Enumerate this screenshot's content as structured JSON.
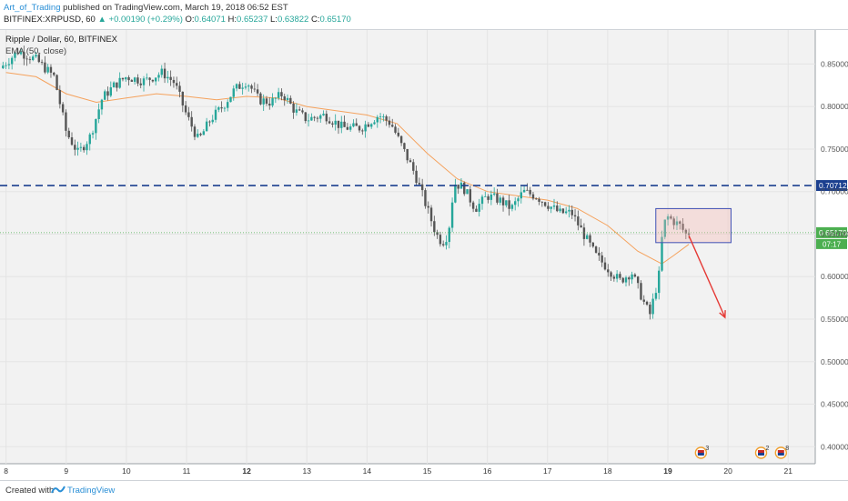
{
  "header": {
    "author": "Art_of_Trading",
    "published": "published on TradingView.com, March 19, 2018 06:52 EST",
    "symbol": "BITFINEX:XRPUSD, 60",
    "change": "+0.00190 (+0.29%)",
    "open_label": "O:",
    "open": "0.64071",
    "high_label": "H:",
    "high": "0.65237",
    "low_label": "L:",
    "low": "0.63822",
    "close_label": "C:",
    "close": "0.65170"
  },
  "chart_data": {
    "type": "candlestick",
    "title": "Ripple / Dollar, 60, BITFINEX",
    "indicator": "EMA (50, close)",
    "ylim": [
      0.38,
      0.89
    ],
    "y_ticks": [
      "0.85000",
      "0.80000",
      "0.75000",
      "0.70000",
      "0.65000",
      "0.60000",
      "0.55000",
      "0.50000",
      "0.45000",
      "0.40000"
    ],
    "x_ticks": [
      "8",
      "9",
      "10",
      "11",
      "12",
      "13",
      "14",
      "15",
      "16",
      "17",
      "18",
      "19",
      "20",
      "21"
    ],
    "x_range_days": [
      7.9,
      21.45
    ],
    "resistance_level": 0.70712,
    "resistance_label": "0.70712",
    "current_price": 0.6517,
    "current_label": "0.65170",
    "countdown_label": "07:17",
    "box": {
      "x0": 18.8,
      "x1": 20.05,
      "y0": 0.64,
      "y1": 0.68
    },
    "arrow": {
      "x0": 19.35,
      "y0": 0.648,
      "x1": 19.95,
      "y1": 0.552
    },
    "event_badges": [
      {
        "day": 19.55,
        "count": "3"
      },
      {
        "day": 20.55,
        "count": "2"
      },
      {
        "day": 20.88,
        "count": "8"
      },
      {
        "day": 21.45,
        "count": ""
      }
    ],
    "colors": {
      "up": "#26a69a",
      "down": "#555555",
      "ema": "#f5a25d",
      "resistance": "#1b3f8f",
      "current": "#4caf50",
      "box_fill": "#f5b7b1",
      "box_stroke": "#3f51b5",
      "arrow": "#e53935"
    },
    "ohlc_path": [
      [
        7.9,
        0.845
      ],
      [
        8.2,
        0.865
      ],
      [
        8.5,
        0.855
      ],
      [
        8.8,
        0.835
      ],
      [
        9.0,
        0.77
      ],
      [
        9.2,
        0.745
      ],
      [
        9.4,
        0.765
      ],
      [
        9.6,
        0.81
      ],
      [
        9.8,
        0.825
      ],
      [
        10.0,
        0.835
      ],
      [
        10.3,
        0.83
      ],
      [
        10.6,
        0.84
      ],
      [
        10.8,
        0.828
      ],
      [
        11.0,
        0.79
      ],
      [
        11.2,
        0.76
      ],
      [
        11.4,
        0.785
      ],
      [
        11.6,
        0.8
      ],
      [
        11.8,
        0.82
      ],
      [
        12.0,
        0.83
      ],
      [
        12.2,
        0.808
      ],
      [
        12.4,
        0.805
      ],
      [
        12.6,
        0.815
      ],
      [
        12.8,
        0.795
      ],
      [
        13.0,
        0.785
      ],
      [
        13.3,
        0.79
      ],
      [
        13.6,
        0.775
      ],
      [
        13.9,
        0.775
      ],
      [
        14.2,
        0.79
      ],
      [
        14.4,
        0.78
      ],
      [
        14.6,
        0.75
      ],
      [
        14.8,
        0.72
      ],
      [
        15.0,
        0.68
      ],
      [
        15.15,
        0.65
      ],
      [
        15.25,
        0.64
      ],
      [
        15.35,
        0.65
      ],
      [
        15.45,
        0.71
      ],
      [
        15.6,
        0.705
      ],
      [
        15.8,
        0.68
      ],
      [
        16.0,
        0.695
      ],
      [
        16.2,
        0.69
      ],
      [
        16.4,
        0.68
      ],
      [
        16.6,
        0.7
      ],
      [
        16.8,
        0.695
      ],
      [
        17.0,
        0.685
      ],
      [
        17.2,
        0.675
      ],
      [
        17.4,
        0.675
      ],
      [
        17.6,
        0.65
      ],
      [
        17.8,
        0.625
      ],
      [
        18.0,
        0.61
      ],
      [
        18.2,
        0.595
      ],
      [
        18.4,
        0.605
      ],
      [
        18.6,
        0.57
      ],
      [
        18.7,
        0.555
      ],
      [
        18.75,
        0.57
      ],
      [
        18.85,
        0.6
      ],
      [
        18.92,
        0.66
      ],
      [
        19.0,
        0.67
      ],
      [
        19.1,
        0.665
      ],
      [
        19.2,
        0.66
      ],
      [
        19.3,
        0.65
      ],
      [
        19.35,
        0.6517
      ]
    ],
    "ema_path": [
      [
        8.0,
        0.84
      ],
      [
        8.5,
        0.835
      ],
      [
        9.0,
        0.815
      ],
      [
        9.5,
        0.805
      ],
      [
        10.0,
        0.81
      ],
      [
        10.5,
        0.815
      ],
      [
        11.0,
        0.812
      ],
      [
        11.5,
        0.808
      ],
      [
        12.0,
        0.812
      ],
      [
        12.5,
        0.81
      ],
      [
        13.0,
        0.8
      ],
      [
        13.5,
        0.795
      ],
      [
        14.0,
        0.79
      ],
      [
        14.5,
        0.78
      ],
      [
        15.0,
        0.745
      ],
      [
        15.5,
        0.715
      ],
      [
        16.0,
        0.7
      ],
      [
        16.5,
        0.695
      ],
      [
        17.0,
        0.69
      ],
      [
        17.5,
        0.68
      ],
      [
        18.0,
        0.66
      ],
      [
        18.5,
        0.63
      ],
      [
        18.9,
        0.615
      ],
      [
        19.1,
        0.625
      ],
      [
        19.35,
        0.638
      ]
    ]
  },
  "footer": {
    "created_with": "Created with",
    "brand": "TradingView"
  }
}
